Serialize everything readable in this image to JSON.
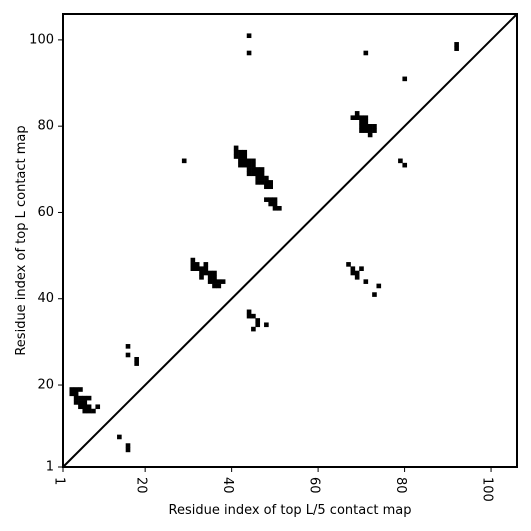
{
  "chart_data": {
    "type": "heatmap",
    "title": "",
    "xlabel": "Residue index of top L/5 contact map",
    "ylabel": "Residue index of top L contact map",
    "xlim": [
      1,
      106
    ],
    "ylim": [
      1,
      106
    ],
    "x_ticks": [
      1,
      20,
      40,
      60,
      80,
      100
    ],
    "y_ticks": [
      1,
      20,
      40,
      60,
      80,
      100
    ],
    "x_tick_labels": [
      "1",
      "20",
      "40",
      "60",
      "80",
      "100"
    ],
    "y_tick_labels": [
      "1",
      "20",
      "40",
      "60",
      "80",
      "100"
    ],
    "x_tick_label_rotation": "vertical",
    "diagonal": true,
    "grid": false,
    "color": "#000000",
    "upper_triangle_contacts": [
      [
        44,
        101
      ],
      [
        44,
        97
      ],
      [
        71,
        97
      ],
      [
        92,
        98
      ],
      [
        92,
        99
      ],
      [
        80,
        91
      ],
      [
        68,
        82
      ],
      [
        69,
        82
      ],
      [
        69,
        83
      ],
      [
        70,
        82
      ],
      [
        71,
        82
      ],
      [
        70,
        81
      ],
      [
        71,
        81
      ],
      [
        70,
        80
      ],
      [
        71,
        80
      ],
      [
        72,
        80
      ],
      [
        73,
        80
      ],
      [
        70,
        79
      ],
      [
        71,
        79
      ],
      [
        72,
        79
      ],
      [
        73,
        79
      ],
      [
        72,
        78
      ],
      [
        29,
        72
      ],
      [
        79,
        72
      ],
      [
        80,
        71
      ],
      [
        41,
        75
      ],
      [
        41,
        74
      ],
      [
        42,
        74
      ],
      [
        43,
        74
      ],
      [
        41,
        73
      ],
      [
        42,
        73
      ],
      [
        43,
        73
      ],
      [
        42,
        72
      ],
      [
        43,
        72
      ],
      [
        44,
        72
      ],
      [
        45,
        72
      ],
      [
        42,
        71
      ],
      [
        43,
        71
      ],
      [
        44,
        71
      ],
      [
        45,
        71
      ],
      [
        44,
        70
      ],
      [
        45,
        70
      ],
      [
        46,
        70
      ],
      [
        47,
        70
      ],
      [
        44,
        69
      ],
      [
        45,
        69
      ],
      [
        46,
        69
      ],
      [
        47,
        69
      ],
      [
        46,
        68
      ],
      [
        47,
        68
      ],
      [
        48,
        68
      ],
      [
        46,
        67
      ],
      [
        47,
        67
      ],
      [
        48,
        67
      ],
      [
        49,
        67
      ],
      [
        48,
        66
      ],
      [
        49,
        66
      ],
      [
        48,
        63
      ],
      [
        49,
        63
      ],
      [
        50,
        63
      ],
      [
        49,
        62
      ],
      [
        50,
        62
      ],
      [
        50,
        61
      ],
      [
        51,
        61
      ]
    ],
    "lower_triangle_contacts": [
      [
        31,
        49
      ],
      [
        31,
        48
      ],
      [
        32,
        48
      ],
      [
        34,
        48
      ],
      [
        31,
        47
      ],
      [
        32,
        47
      ],
      [
        33,
        47
      ],
      [
        34,
        47
      ],
      [
        33,
        46
      ],
      [
        34,
        46
      ],
      [
        35,
        46
      ],
      [
        36,
        46
      ],
      [
        33,
        45
      ],
      [
        35,
        45
      ],
      [
        36,
        45
      ],
      [
        35,
        44
      ],
      [
        36,
        44
      ],
      [
        37,
        44
      ],
      [
        38,
        44
      ],
      [
        36,
        43
      ],
      [
        37,
        43
      ],
      [
        67,
        48
      ],
      [
        68,
        47
      ],
      [
        70,
        47
      ],
      [
        68,
        46
      ],
      [
        69,
        46
      ],
      [
        69,
        45
      ],
      [
        71,
        44
      ],
      [
        74,
        43
      ],
      [
        73,
        41
      ],
      [
        44,
        37
      ],
      [
        44,
        36
      ],
      [
        45,
        36
      ],
      [
        46,
        35
      ],
      [
        46,
        34
      ],
      [
        48,
        34
      ],
      [
        45,
        33
      ],
      [
        16,
        29
      ],
      [
        16,
        27
      ],
      [
        18,
        26
      ],
      [
        18,
        25
      ],
      [
        3,
        19
      ],
      [
        4,
        19
      ],
      [
        5,
        19
      ],
      [
        3,
        18
      ],
      [
        4,
        18
      ],
      [
        4,
        17
      ],
      [
        5,
        17
      ],
      [
        6,
        17
      ],
      [
        7,
        17
      ],
      [
        4,
        16
      ],
      [
        5,
        16
      ],
      [
        6,
        16
      ],
      [
        5,
        15
      ],
      [
        6,
        15
      ],
      [
        7,
        15
      ],
      [
        9,
        15
      ],
      [
        6,
        14
      ],
      [
        7,
        14
      ],
      [
        8,
        14
      ],
      [
        14,
        8
      ],
      [
        16,
        6
      ],
      [
        16,
        5
      ]
    ]
  }
}
